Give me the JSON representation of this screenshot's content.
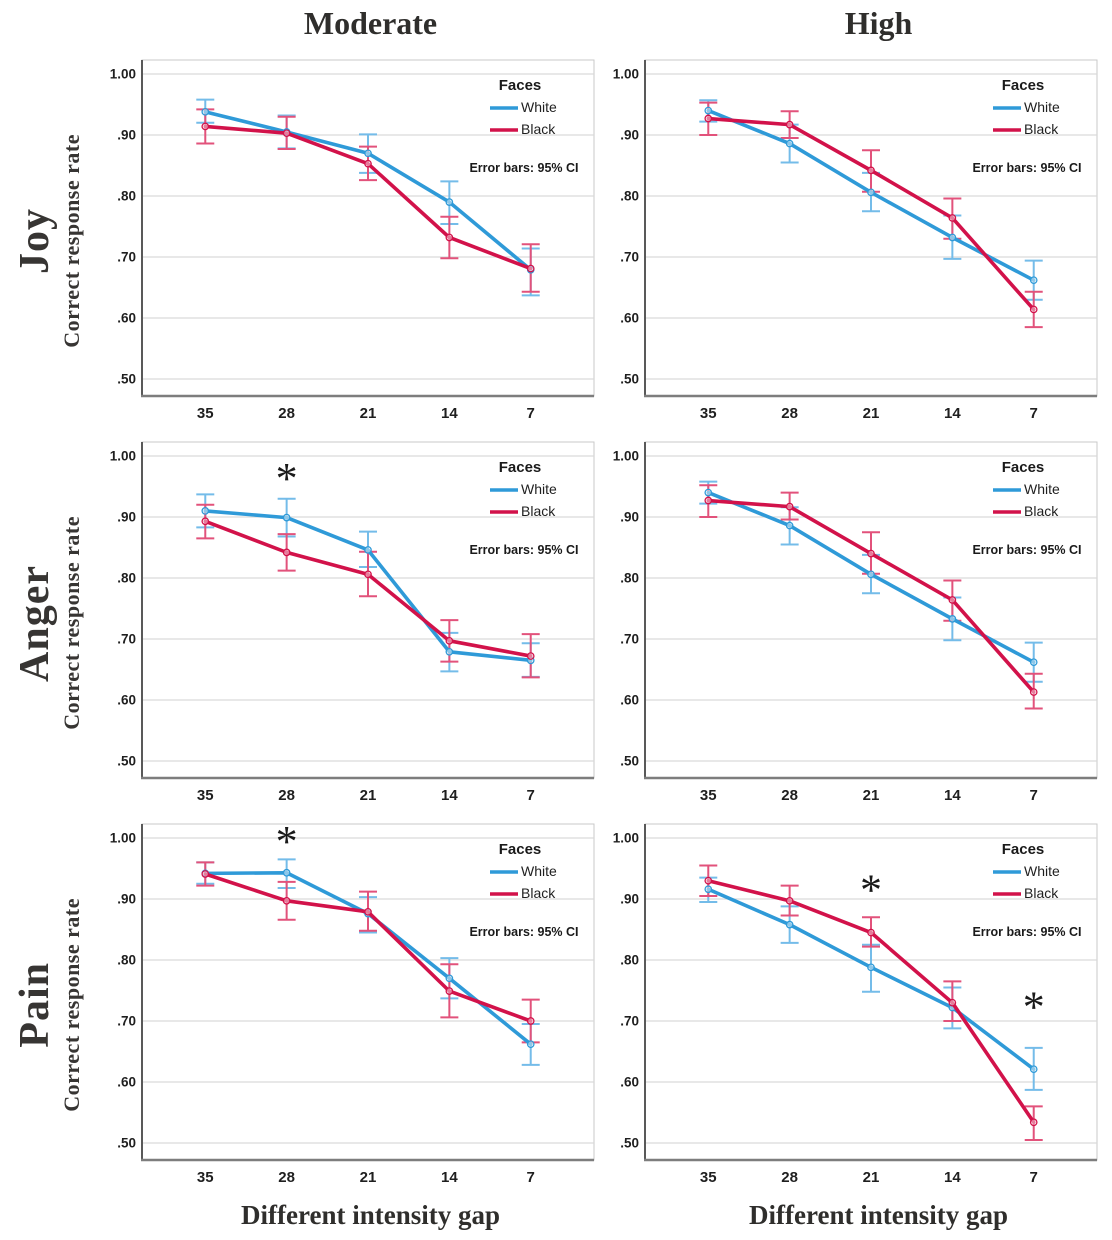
{
  "header": {
    "col_titles": [
      "Moderate",
      "High"
    ]
  },
  "rows": [
    {
      "emotion": "Joy",
      "ylabel": "Correct response rate"
    },
    {
      "emotion": "Anger",
      "ylabel": "Correct response rate"
    },
    {
      "emotion": "Pain",
      "ylabel": "Correct response rate"
    }
  ],
  "footer": {
    "xaxis_title_left": "Different intensity gap",
    "xaxis_title_right": "Different intensity gap"
  },
  "legend": {
    "title": "Faces",
    "note": "Error bars: 95% CI"
  },
  "axes": {
    "x_ticks": [
      "35",
      "28",
      "21",
      "14",
      "7"
    ],
    "y_ticks": [
      "1.00",
      ".90",
      ".80",
      ".70",
      ".60",
      ".50"
    ],
    "ylim": [
      0.5,
      1.0
    ],
    "grid": true
  },
  "colors": {
    "white_line": "#2f9ad8",
    "white_ci": "#74bce9",
    "black_line": "#d2124a",
    "black_ci": "#e2527b",
    "gridline": "#d9d9d9",
    "frame": "#c9c9c9",
    "left_spine": "#595959",
    "bottom_spine": "#7d7d7d",
    "tick_text": "#1f1f1f",
    "title_text": "#2f2e2c"
  },
  "chart_data": [
    {
      "type": "line",
      "emotion": "Joy",
      "intensity": "Moderate",
      "x": [
        35,
        28,
        21,
        14,
        7
      ],
      "series": [
        {
          "name": "White",
          "values": [
            0.938,
            0.905,
            0.87,
            0.79,
            0.679
          ],
          "ci_low": [
            0.92,
            0.878,
            0.838,
            0.754,
            0.637
          ],
          "ci_high": [
            0.958,
            0.932,
            0.901,
            0.824,
            0.714
          ]
        },
        {
          "name": "Black",
          "values": [
            0.914,
            0.903,
            0.853,
            0.732,
            0.681
          ],
          "ci_low": [
            0.886,
            0.877,
            0.826,
            0.698,
            0.643
          ],
          "ci_high": [
            0.942,
            0.93,
            0.881,
            0.766,
            0.721
          ]
        }
      ],
      "asterisks": []
    },
    {
      "type": "line",
      "emotion": "Joy",
      "intensity": "High",
      "x": [
        35,
        28,
        21,
        14,
        7
      ],
      "series": [
        {
          "name": "White",
          "values": [
            0.94,
            0.886,
            0.806,
            0.732,
            0.662
          ],
          "ci_low": [
            0.922,
            0.855,
            0.775,
            0.697,
            0.63
          ],
          "ci_high": [
            0.957,
            0.917,
            0.838,
            0.768,
            0.694
          ]
        },
        {
          "name": "Black",
          "values": [
            0.927,
            0.917,
            0.842,
            0.764,
            0.614
          ],
          "ci_low": [
            0.9,
            0.895,
            0.807,
            0.73,
            0.585
          ],
          "ci_high": [
            0.953,
            0.939,
            0.875,
            0.796,
            0.643
          ]
        }
      ],
      "asterisks": []
    },
    {
      "type": "line",
      "emotion": "Anger",
      "intensity": "Moderate",
      "x": [
        35,
        28,
        21,
        14,
        7
      ],
      "series": [
        {
          "name": "White",
          "values": [
            0.91,
            0.899,
            0.846,
            0.679,
            0.665
          ],
          "ci_low": [
            0.883,
            0.868,
            0.818,
            0.647,
            0.638
          ],
          "ci_high": [
            0.937,
            0.93,
            0.876,
            0.71,
            0.693
          ]
        },
        {
          "name": "Black",
          "values": [
            0.893,
            0.842,
            0.806,
            0.697,
            0.672
          ],
          "ci_low": [
            0.865,
            0.812,
            0.77,
            0.663,
            0.637
          ],
          "ci_high": [
            0.92,
            0.872,
            0.843,
            0.731,
            0.708
          ]
        }
      ],
      "asterisks": [
        {
          "x_index": 1,
          "value": 0.972
        }
      ]
    },
    {
      "type": "line",
      "emotion": "Anger",
      "intensity": "High",
      "x": [
        35,
        28,
        21,
        14,
        7
      ],
      "series": [
        {
          "name": "White",
          "values": [
            0.94,
            0.886,
            0.806,
            0.733,
            0.662
          ],
          "ci_low": [
            0.922,
            0.855,
            0.775,
            0.698,
            0.63
          ],
          "ci_high": [
            0.958,
            0.916,
            0.838,
            0.768,
            0.694
          ]
        },
        {
          "name": "Black",
          "values": [
            0.927,
            0.917,
            0.84,
            0.764,
            0.613
          ],
          "ci_low": [
            0.9,
            0.896,
            0.807,
            0.73,
            0.586
          ],
          "ci_high": [
            0.952,
            0.94,
            0.875,
            0.796,
            0.643
          ]
        }
      ],
      "asterisks": []
    },
    {
      "type": "line",
      "emotion": "Pain",
      "intensity": "Moderate",
      "x": [
        35,
        28,
        21,
        14,
        7
      ],
      "series": [
        {
          "name": "White",
          "values": [
            0.942,
            0.943,
            0.876,
            0.77,
            0.662
          ],
          "ci_low": [
            0.925,
            0.918,
            0.845,
            0.737,
            0.628
          ],
          "ci_high": [
            0.96,
            0.965,
            0.903,
            0.803,
            0.695
          ]
        },
        {
          "name": "Black",
          "values": [
            0.941,
            0.897,
            0.879,
            0.749,
            0.7
          ],
          "ci_low": [
            0.922,
            0.866,
            0.848,
            0.706,
            0.665
          ],
          "ci_high": [
            0.96,
            0.928,
            0.912,
            0.793,
            0.735
          ]
        }
      ],
      "asterisks": [
        {
          "x_index": 1,
          "value": 1.003
        }
      ]
    },
    {
      "type": "line",
      "emotion": "Pain",
      "intensity": "High",
      "x": [
        35,
        28,
        21,
        14,
        7
      ],
      "series": [
        {
          "name": "White",
          "values": [
            0.916,
            0.858,
            0.788,
            0.722,
            0.621
          ],
          "ci_low": [
            0.895,
            0.828,
            0.748,
            0.688,
            0.587
          ],
          "ci_high": [
            0.935,
            0.888,
            0.825,
            0.755,
            0.656
          ]
        },
        {
          "name": "Black",
          "values": [
            0.93,
            0.897,
            0.845,
            0.73,
            0.534
          ],
          "ci_low": [
            0.905,
            0.873,
            0.822,
            0.7,
            0.505
          ],
          "ci_high": [
            0.955,
            0.922,
            0.87,
            0.765,
            0.56
          ]
        }
      ],
      "asterisks": [
        {
          "x_index": 2,
          "value": 0.924
        },
        {
          "x_index": 4,
          "value": 0.732
        }
      ]
    }
  ]
}
